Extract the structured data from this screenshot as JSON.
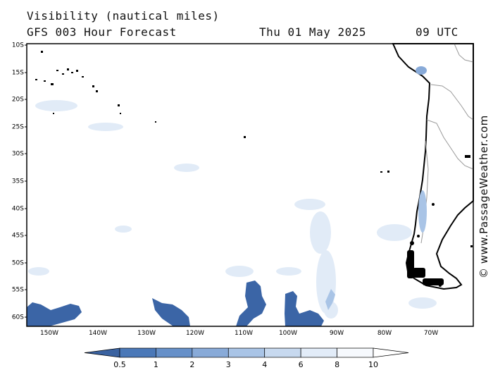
{
  "header": {
    "title": "Visibility (nautical miles)",
    "subtitle": "GFS 003 Hour Forecast",
    "date": "Thu 01 May 2025",
    "time": "09 UTC"
  },
  "map": {
    "latitude_labels": [
      "10S",
      "15S",
      "20S",
      "25S",
      "30S",
      "35S",
      "40S",
      "45S",
      "50S",
      "55S",
      "60S"
    ],
    "longitude_labels": [
      "150W",
      "140W",
      "130W",
      "120W",
      "110W",
      "100W",
      "90W",
      "80W",
      "70W"
    ],
    "land_color": "#ffffff",
    "coast_color": "#000000",
    "border_color": "#999999"
  },
  "legend": {
    "labels": [
      "0.5",
      "1",
      "2",
      "3",
      "4",
      "6",
      "8",
      "10"
    ],
    "colors": [
      "#3a62a0",
      "#4a78b8",
      "#6690c9",
      "#88aad8",
      "#a9c4e6",
      "#c7d9ef",
      "#e2ecf8",
      "#f6f9fd",
      "#ffffff"
    ]
  },
  "credit": "© www.PassageWeather.com"
}
